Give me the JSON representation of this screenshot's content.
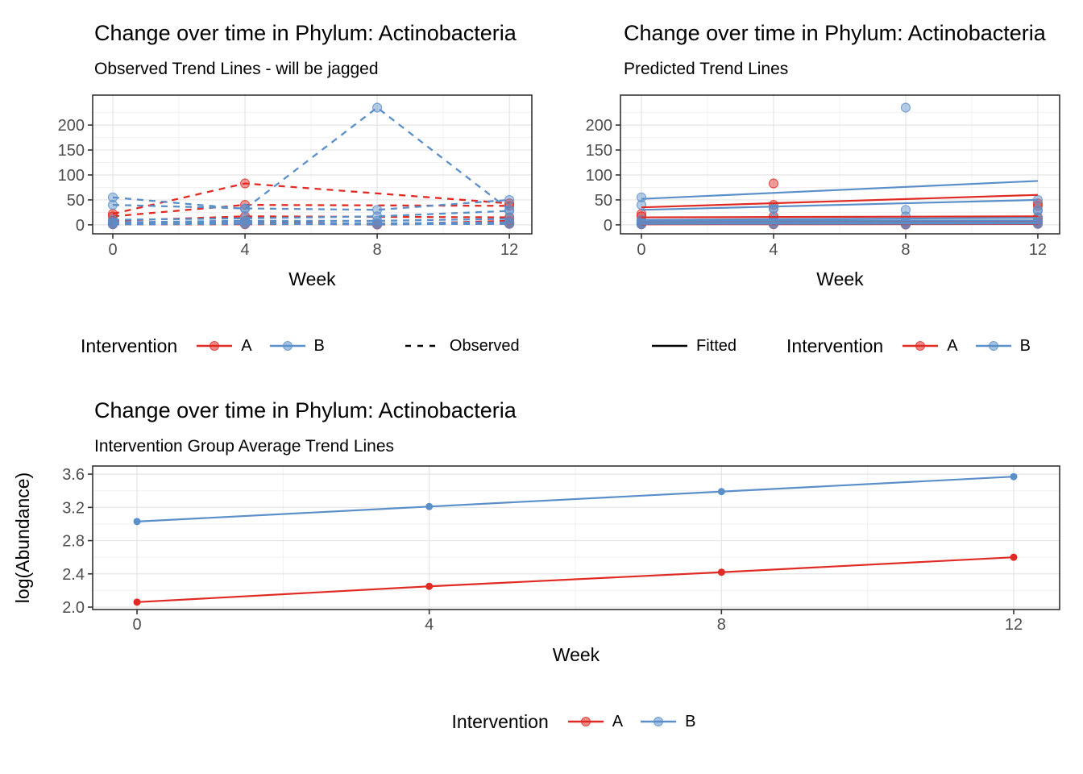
{
  "colors": {
    "A": "#E02B24",
    "B": "#5B8FC9",
    "legend_line": "#000000",
    "axis": "#333333",
    "tick_label": "#4D4D4D",
    "grid_major": "#E4E4E4",
    "grid_minor": "#F1F1F1",
    "panel_border": "#333333",
    "background": "#FFFFFF"
  },
  "chart_data": [
    {
      "type": "line",
      "title": "Change over time in Phylum: Actinobacteria",
      "subtitle": "Observed Trend Lines - will be jagged",
      "xlabel": "Week",
      "x": [
        0,
        4,
        8,
        12
      ],
      "x_ticks": [
        "0",
        "4",
        "8",
        "12"
      ],
      "x_minor": [
        2,
        6,
        10
      ],
      "y_ticks": [
        "0",
        "50",
        "100",
        "150",
        "200"
      ],
      "y_minor": [
        25,
        75,
        125,
        175,
        225
      ],
      "xlim": [
        -0.61,
        12.68
      ],
      "ylim": [
        -18,
        260
      ],
      "linestyle": "dashed",
      "point_opacity": 0.45,
      "point_r": 5.5,
      "line_w": 2.3,
      "grid": true,
      "legend_position": "bottom",
      "series": [
        {
          "group": "A",
          "draw": "both",
          "values": [
            22,
            83,
            null,
            43
          ]
        },
        {
          "group": "A",
          "draw": "both",
          "values": [
            17,
            40,
            null,
            38
          ]
        },
        {
          "group": "A",
          "draw": "both",
          "values": [
            8,
            17,
            null,
            15
          ]
        },
        {
          "group": "A",
          "draw": "both",
          "values": [
            4,
            8,
            1,
            8
          ]
        },
        {
          "group": "A",
          "draw": "both",
          "values": [
            2,
            3,
            0.5,
            4
          ]
        },
        {
          "group": "A",
          "draw": "both",
          "values": [
            1,
            1,
            2,
            2
          ]
        },
        {
          "group": "B",
          "draw": "both",
          "values": [
            55,
            32,
            235,
            30
          ]
        },
        {
          "group": "B",
          "draw": "both",
          "values": [
            40,
            33,
            30,
            50
          ]
        },
        {
          "group": "B",
          "draw": "both",
          "values": [
            10,
            13,
            17,
            28
          ]
        },
        {
          "group": "B",
          "draw": "both",
          "values": [
            5,
            8,
            8,
            12
          ]
        },
        {
          "group": "B",
          "draw": "both",
          "values": [
            3,
            4,
            3,
            5
          ]
        },
        {
          "group": "B",
          "draw": "both",
          "values": [
            1,
            2,
            1,
            2
          ]
        }
      ],
      "legend": {
        "title": "Intervention",
        "items": [
          {
            "label": "A"
          },
          {
            "label": "B"
          }
        ],
        "linetype_item": {
          "label": "Observed",
          "style": "dashed"
        }
      }
    },
    {
      "type": "line",
      "title": "Change over time in Phylum: Actinobacteria",
      "subtitle": "Predicted Trend Lines",
      "xlabel": "Week",
      "x": [
        0,
        4,
        8,
        12
      ],
      "x_ticks": [
        "0",
        "4",
        "8",
        "12"
      ],
      "x_minor": [
        2,
        6,
        10
      ],
      "y_ticks": [
        "0",
        "50",
        "100",
        "150",
        "200"
      ],
      "y_minor": [
        25,
        75,
        125,
        175,
        225
      ],
      "xlim": [
        -0.634,
        12.66
      ],
      "ylim": [
        -18,
        260
      ],
      "linestyle": "solid",
      "point_opacity": 0.45,
      "point_r": 5.5,
      "line_w": 2.2,
      "grid": true,
      "legend_position": "bottom",
      "series": [
        {
          "group": "A",
          "draw": "points",
          "values": [
            22,
            83,
            null,
            43
          ]
        },
        {
          "group": "A",
          "draw": "points",
          "values": [
            17,
            40,
            null,
            38
          ]
        },
        {
          "group": "A",
          "draw": "points",
          "values": [
            8,
            17,
            null,
            15
          ]
        },
        {
          "group": "A",
          "draw": "points",
          "values": [
            4,
            8,
            1,
            8
          ]
        },
        {
          "group": "A",
          "draw": "points",
          "values": [
            2,
            3,
            0.5,
            4
          ]
        },
        {
          "group": "A",
          "draw": "points",
          "values": [
            1,
            1,
            2,
            2
          ]
        },
        {
          "group": "B",
          "draw": "points",
          "values": [
            55,
            32,
            235,
            30
          ]
        },
        {
          "group": "B",
          "draw": "points",
          "values": [
            40,
            33,
            30,
            50
          ]
        },
        {
          "group": "B",
          "draw": "points",
          "values": [
            10,
            13,
            17,
            28
          ]
        },
        {
          "group": "B",
          "draw": "points",
          "values": [
            5,
            8,
            8,
            12
          ]
        },
        {
          "group": "B",
          "draw": "points",
          "values": [
            3,
            4,
            3,
            5
          ]
        },
        {
          "group": "B",
          "draw": "points",
          "values": [
            1,
            2,
            1,
            2
          ]
        },
        {
          "group": "A",
          "draw": "line",
          "x": [
            0,
            12
          ],
          "values": [
            35,
            60
          ]
        },
        {
          "group": "A",
          "draw": "line",
          "x": [
            0,
            12
          ],
          "values": [
            15,
            17
          ]
        },
        {
          "group": "A",
          "draw": "line",
          "x": [
            0,
            12
          ],
          "values": [
            6,
            8
          ]
        },
        {
          "group": "A",
          "draw": "line",
          "x": [
            0,
            12
          ],
          "values": [
            3,
            4
          ]
        },
        {
          "group": "A",
          "draw": "line",
          "x": [
            0,
            12
          ],
          "values": [
            2,
            2.5
          ]
        },
        {
          "group": "A",
          "draw": "line",
          "x": [
            0,
            12
          ],
          "values": [
            1,
            1.5
          ]
        },
        {
          "group": "B",
          "draw": "line",
          "x": [
            0,
            12
          ],
          "values": [
            52,
            88
          ]
        },
        {
          "group": "B",
          "draw": "line",
          "x": [
            0,
            12
          ],
          "values": [
            30,
            50
          ]
        },
        {
          "group": "B",
          "draw": "line",
          "x": [
            0,
            12
          ],
          "values": [
            10,
            14
          ]
        },
        {
          "group": "B",
          "draw": "line",
          "x": [
            0,
            12
          ],
          "values": [
            8,
            9
          ]
        },
        {
          "group": "B",
          "draw": "line",
          "x": [
            0,
            12
          ],
          "values": [
            4,
            5
          ]
        },
        {
          "group": "B",
          "draw": "line",
          "x": [
            0,
            12
          ],
          "values": [
            2,
            2.5
          ]
        }
      ],
      "legend": {
        "title": "Intervention",
        "items": [
          {
            "label": "A"
          },
          {
            "label": "B"
          }
        ],
        "linetype_item": {
          "label": "Fitted",
          "style": "solid"
        }
      }
    },
    {
      "type": "line",
      "title": "Change over time in Phylum: Actinobacteria",
      "subtitle": "Intervention Group Average Trend Lines",
      "xlabel": "Week",
      "ylabel": "log(Abundance)",
      "x": [
        0,
        4,
        8,
        12
      ],
      "x_ticks": [
        "0",
        "4",
        "8",
        "12"
      ],
      "x_minor": [
        2,
        6,
        10
      ],
      "y_ticks": [
        "2.0",
        "2.4",
        "2.8",
        "3.2",
        "3.6"
      ],
      "y_minor": [
        2.2,
        2.6,
        3.0,
        3.4
      ],
      "xlim": [
        -0.607,
        12.629
      ],
      "ylim": [
        1.971,
        3.698
      ],
      "linestyle": "solid",
      "point_opacity": 1,
      "point_r": 4.5,
      "line_w": 2.2,
      "grid": true,
      "legend_position": "bottom",
      "series": [
        {
          "group": "A",
          "name": "A",
          "draw": "both",
          "values": [
            2.06,
            2.25,
            2.42,
            2.6
          ]
        },
        {
          "group": "B",
          "name": "B",
          "draw": "both",
          "values": [
            3.03,
            3.21,
            3.39,
            3.57
          ]
        }
      ],
      "legend": {
        "title": "Intervention",
        "items": [
          {
            "label": "A"
          },
          {
            "label": "B"
          }
        ]
      }
    }
  ]
}
